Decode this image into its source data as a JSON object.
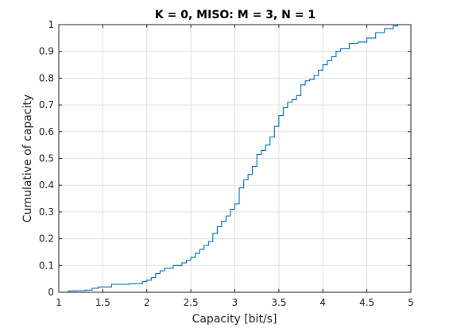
{
  "chart_data": {
    "type": "line",
    "title": "K = 0, MISO: M = 3, N = 1",
    "xlabel": "Capacity [bit/s]",
    "ylabel": "Cumulative of capacity",
    "xlim": [
      1,
      5
    ],
    "ylim": [
      0,
      1
    ],
    "grid": true,
    "step": true,
    "x_ticks": [
      "1",
      "1.5",
      "2",
      "2.5",
      "3",
      "3.5",
      "4",
      "4.5",
      "5"
    ],
    "y_ticks": [
      "0",
      "0.1",
      "0.2",
      "0.3",
      "0.4",
      "0.5",
      "0.6",
      "0.7",
      "0.8",
      "0.9",
      "1"
    ],
    "series": [
      {
        "color": "#0072bd",
        "x": [
          1.1,
          1.2,
          1.3,
          1.38,
          1.45,
          1.6,
          1.8,
          1.95,
          2.0,
          2.05,
          2.1,
          2.15,
          2.2,
          2.3,
          2.4,
          2.45,
          2.5,
          2.55,
          2.6,
          2.65,
          2.7,
          2.75,
          2.8,
          2.85,
          2.9,
          2.95,
          3.0,
          3.05,
          3.1,
          3.15,
          3.2,
          3.25,
          3.3,
          3.35,
          3.4,
          3.45,
          3.5,
          3.55,
          3.6,
          3.65,
          3.7,
          3.75,
          3.8,
          3.85,
          3.9,
          3.95,
          4.0,
          4.05,
          4.1,
          4.15,
          4.2,
          4.3,
          4.4,
          4.5,
          4.6,
          4.7,
          4.8,
          4.85
        ],
        "y": [
          0.005,
          0.006,
          0.008,
          0.015,
          0.02,
          0.03,
          0.032,
          0.04,
          0.045,
          0.055,
          0.07,
          0.08,
          0.09,
          0.1,
          0.11,
          0.12,
          0.13,
          0.145,
          0.16,
          0.175,
          0.19,
          0.22,
          0.245,
          0.265,
          0.285,
          0.31,
          0.33,
          0.39,
          0.42,
          0.44,
          0.47,
          0.515,
          0.53,
          0.55,
          0.58,
          0.62,
          0.66,
          0.69,
          0.71,
          0.72,
          0.735,
          0.775,
          0.79,
          0.795,
          0.81,
          0.83,
          0.85,
          0.865,
          0.88,
          0.9,
          0.91,
          0.93,
          0.935,
          0.95,
          0.97,
          0.985,
          0.995,
          1.0
        ]
      }
    ]
  }
}
